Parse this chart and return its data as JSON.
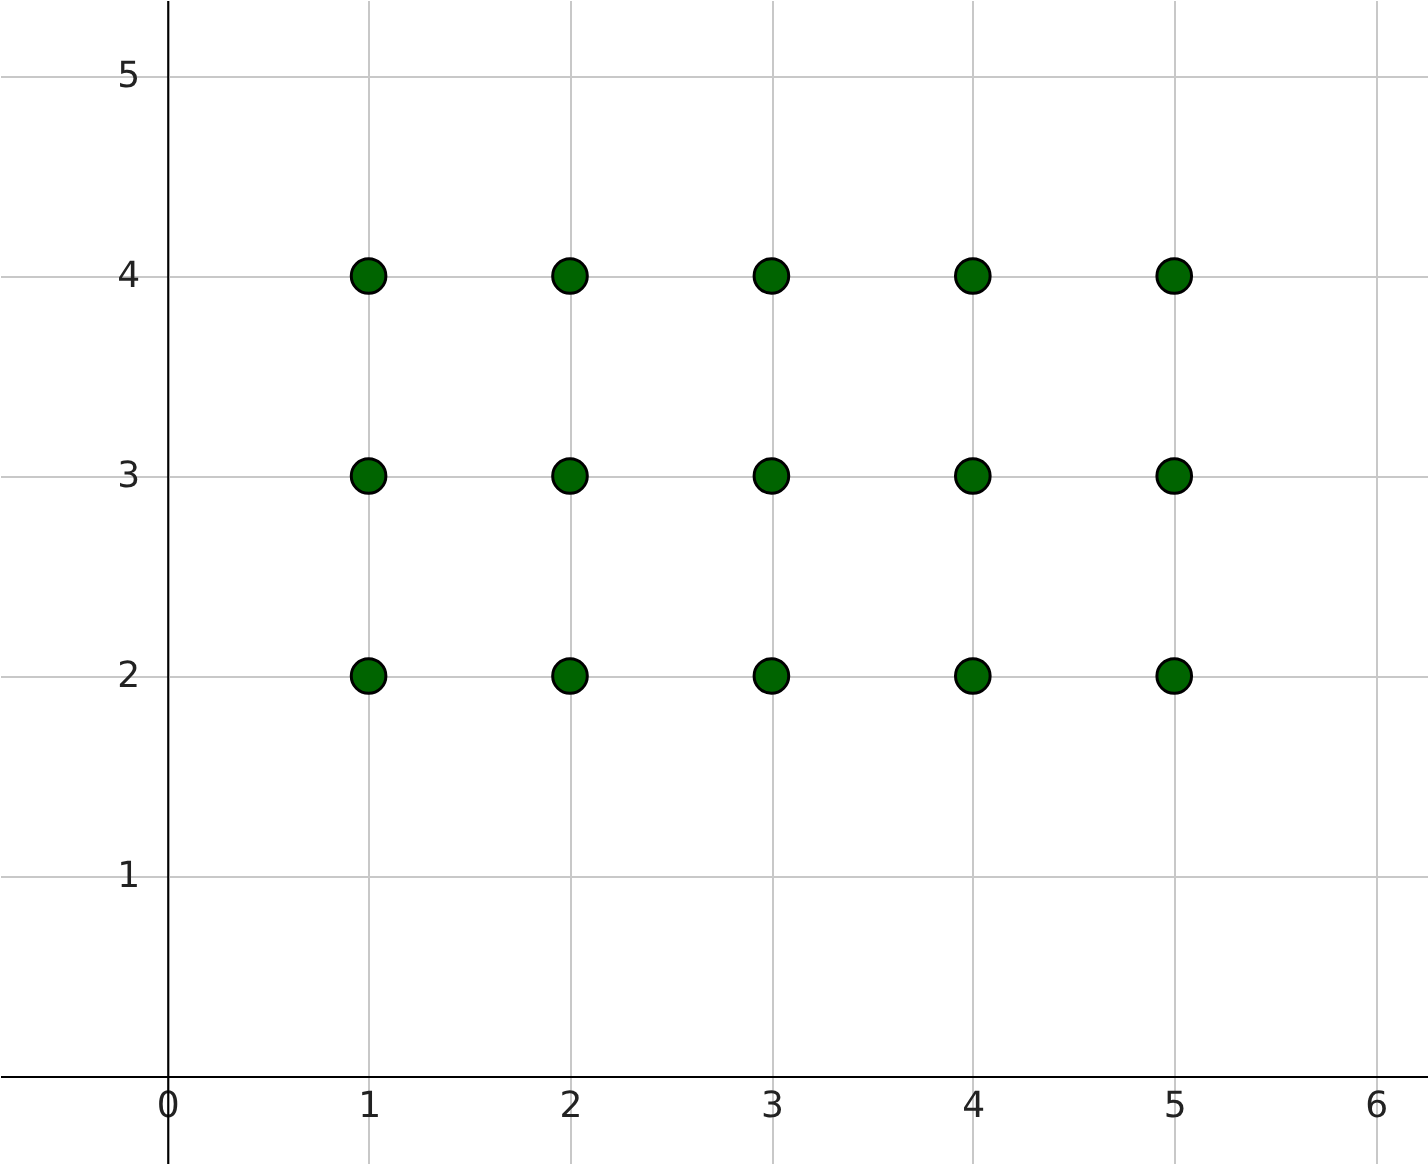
{
  "chart_data": {
    "type": "scatter",
    "x": [
      1,
      2,
      3,
      4,
      5,
      1,
      2,
      3,
      4,
      5,
      1,
      2,
      3,
      4,
      5
    ],
    "values": [
      4,
      4,
      4,
      4,
      4,
      3,
      3,
      3,
      3,
      3,
      2,
      2,
      2,
      2,
      2
    ],
    "color": "#006400",
    "marker": "circle",
    "grid": true,
    "xlim": [
      -0.83,
      6.26
    ],
    "ylim": [
      -0.44,
      5.38
    ],
    "xticks": [
      0,
      1,
      2,
      3,
      4,
      5,
      6
    ],
    "yticks": [
      1,
      2,
      3,
      4,
      5
    ]
  }
}
